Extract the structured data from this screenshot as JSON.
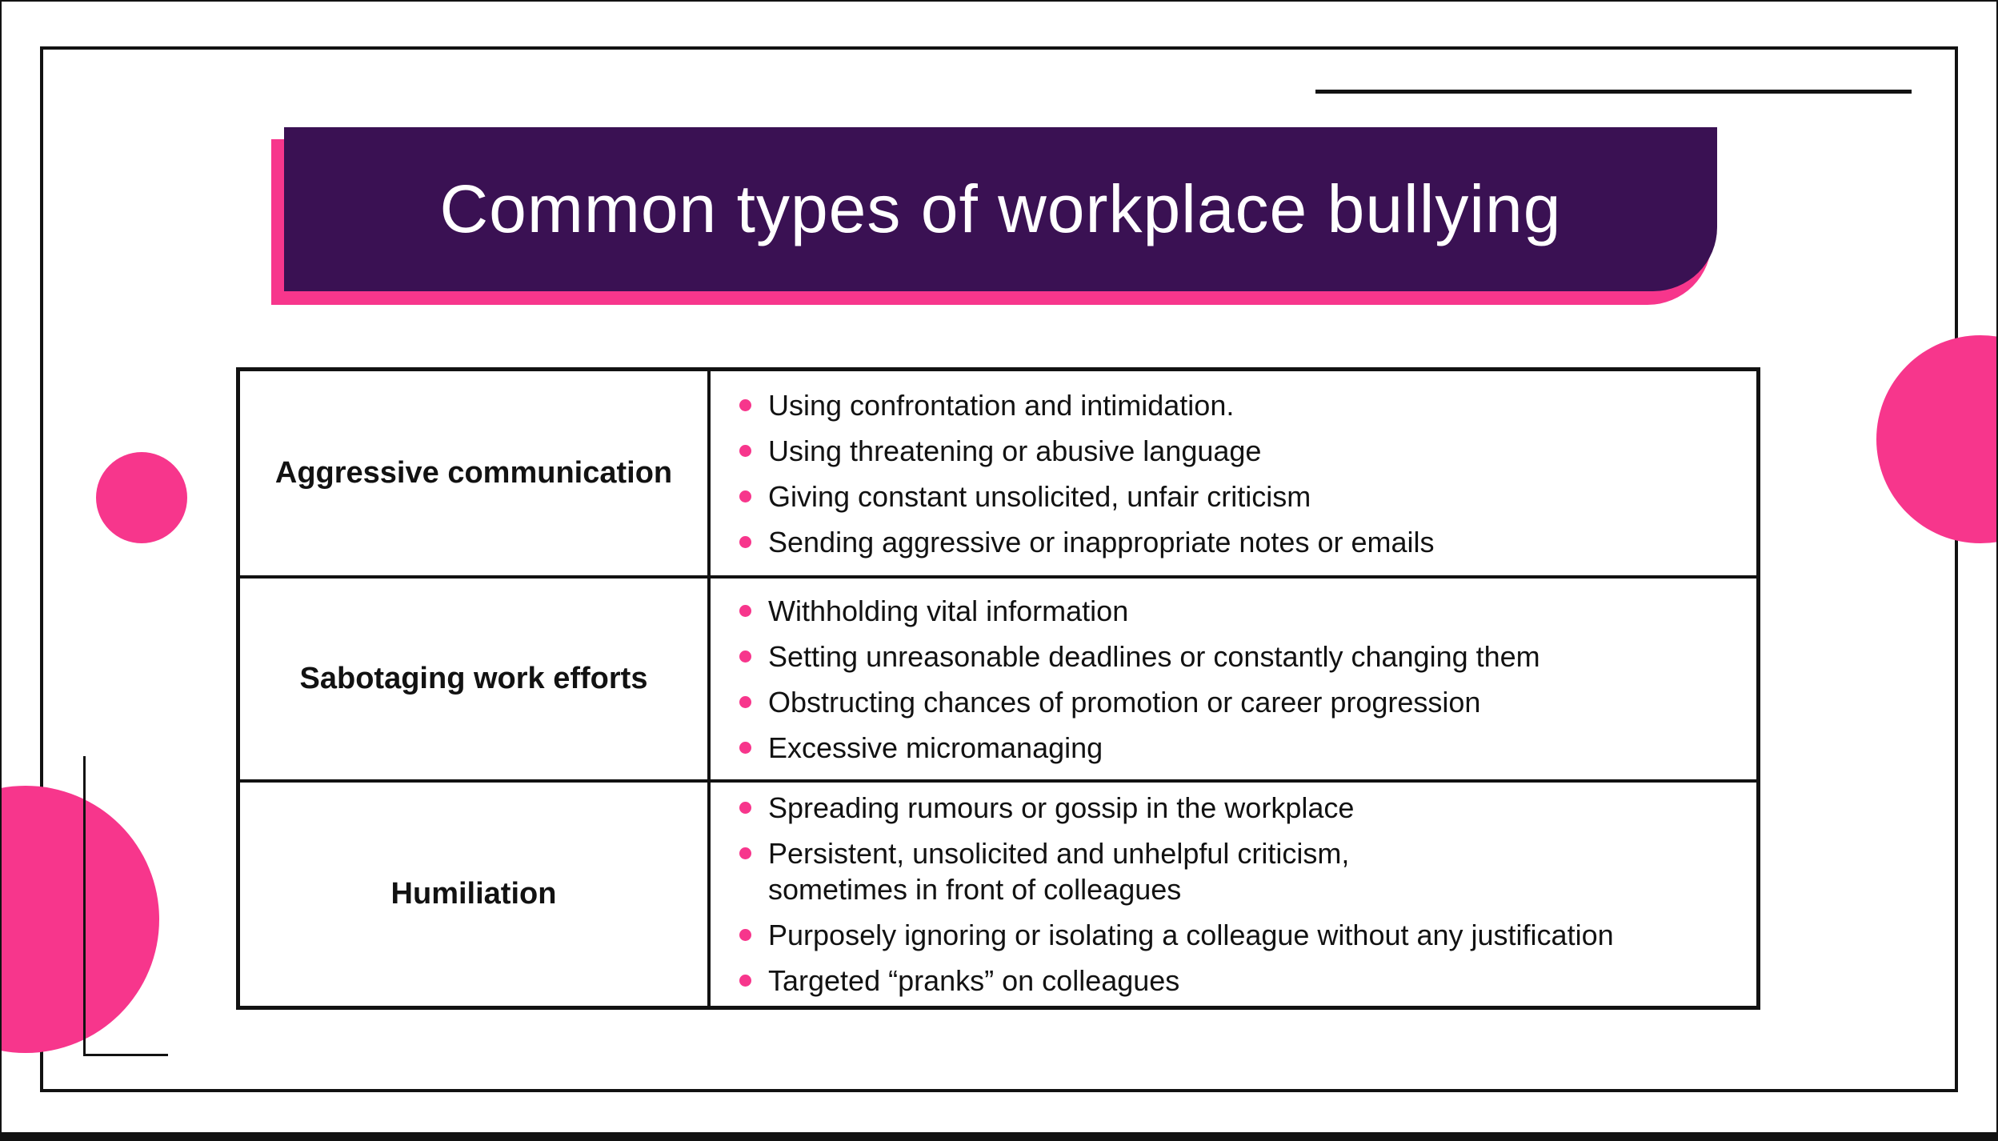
{
  "title": "Common types of workplace bullying",
  "colors": {
    "pink": "#f7368c",
    "purple": "#3a1153",
    "ink": "#121212",
    "paper": "#ffffff"
  },
  "table": {
    "rows": [
      {
        "label": "Aggressive communication",
        "bullets": [
          "Using confrontation and intimidation.",
          "Using threatening or abusive language",
          "Giving constant unsolicited, unfair criticism",
          "Sending aggressive or inappropriate notes or emails"
        ]
      },
      {
        "label": "Sabotaging work efforts",
        "bullets": [
          "Withholding vital information",
          "Setting unreasonable deadlines or constantly changing them",
          "Obstructing chances of promotion or career progression",
          "Excessive micromanaging"
        ]
      },
      {
        "label": "Humiliation",
        "bullets": [
          "Spreading rumours or gossip in the workplace",
          "Persistent, unsolicited and unhelpful criticism,\nsometimes in front of colleagues",
          "Purposely ignoring or isolating a colleague without any justification",
          "Targeted “pranks” on colleagues"
        ]
      }
    ]
  }
}
